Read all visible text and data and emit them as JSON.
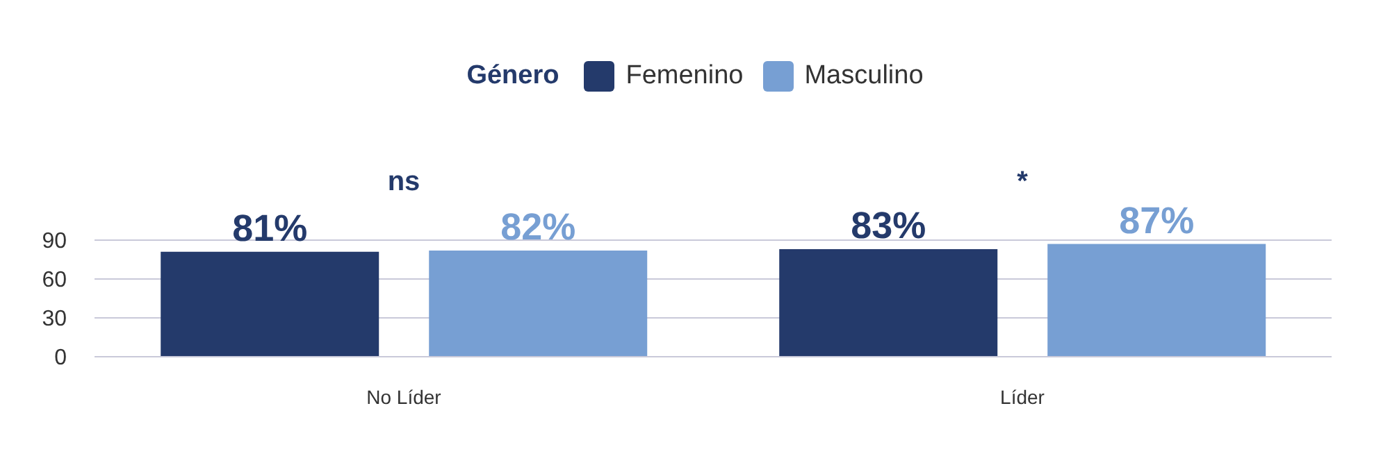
{
  "chart_data": {
    "type": "bar",
    "categories": [
      "No Líder",
      "Líder"
    ],
    "series": [
      {
        "name": "Femenino",
        "color": "#243a6b",
        "values": [
          81,
          83
        ],
        "value_labels": [
          "81%",
          "83%"
        ]
      },
      {
        "name": "Masculino",
        "color": "#779fd3",
        "values": [
          82,
          87
        ],
        "value_labels": [
          "82%",
          "87%"
        ]
      }
    ],
    "legend_title": "Género",
    "legend": "top",
    "ylim": [
      0,
      90
    ],
    "yticks": [
      0,
      30,
      60,
      90
    ],
    "grid": "y",
    "annotations": [
      "ns",
      "*"
    ]
  }
}
